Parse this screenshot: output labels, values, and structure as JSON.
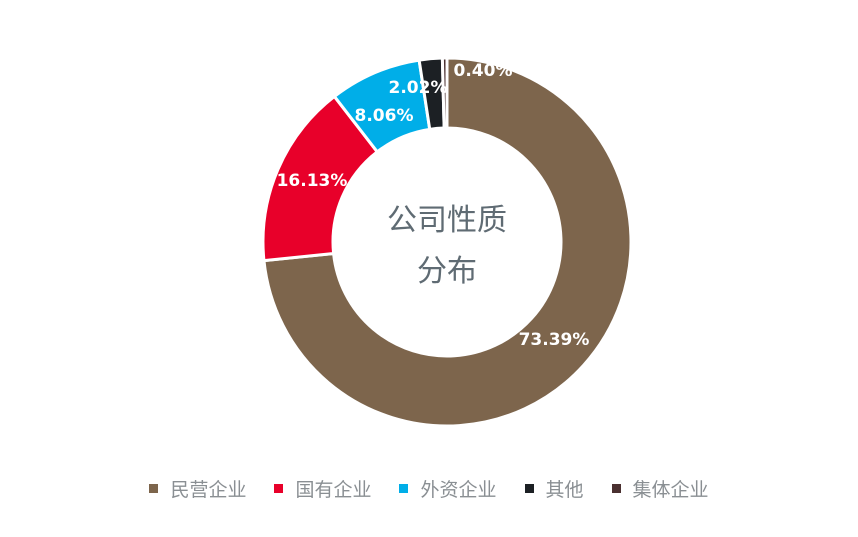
{
  "chart_data": {
    "type": "pie",
    "title_lines": [
      "公司性质",
      "分布"
    ],
    "categories": [
      "民营企业",
      "国有企业",
      "外资企业",
      "其他",
      "集体企业"
    ],
    "values": [
      73.39,
      16.13,
      8.06,
      2.02,
      0.4
    ],
    "labels": [
      "73.39%",
      "16.13%",
      "8.06%",
      "2.02%",
      "0.40%"
    ],
    "colors": [
      "#7d654c",
      "#e8002a",
      "#00aee8",
      "#1c2024",
      "#4a3030"
    ],
    "legend_position": "bottom",
    "donut": true
  }
}
